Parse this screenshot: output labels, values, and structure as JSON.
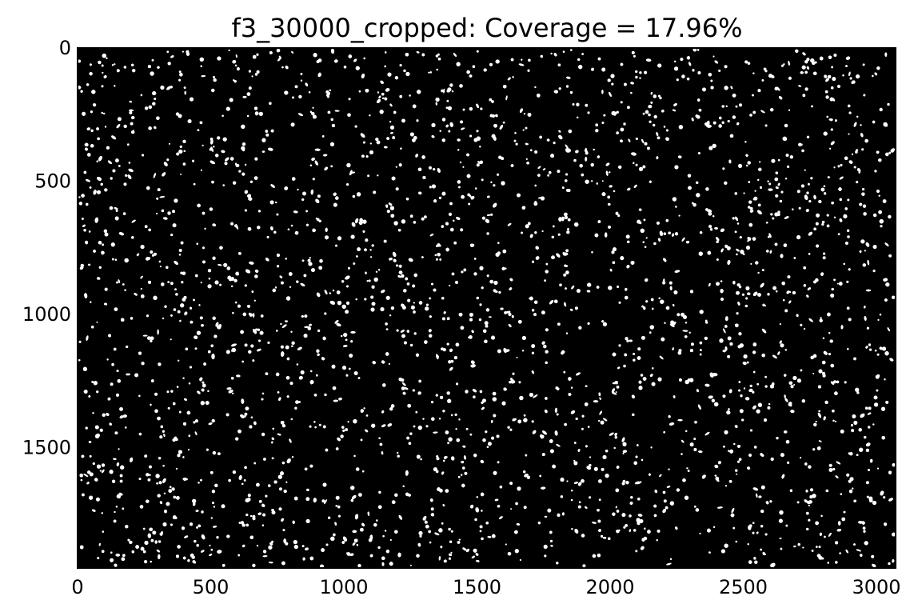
{
  "chart_data": {
    "type": "heatmap",
    "title": "f3_30000_cropped: Coverage = 17.96%",
    "xlabel": "",
    "ylabel": "",
    "xlim": [
      0,
      3072
    ],
    "ylim": [
      1952,
      0
    ],
    "x_ticks": [
      0,
      500,
      1000,
      1500,
      2000,
      2500,
      3000
    ],
    "y_ticks": [
      0,
      500,
      1000,
      1500
    ],
    "coverage_percent": 17.96,
    "grid": false,
    "legend": "none",
    "colors": {
      "background": "#000000",
      "foreground": "#ffffff"
    }
  }
}
